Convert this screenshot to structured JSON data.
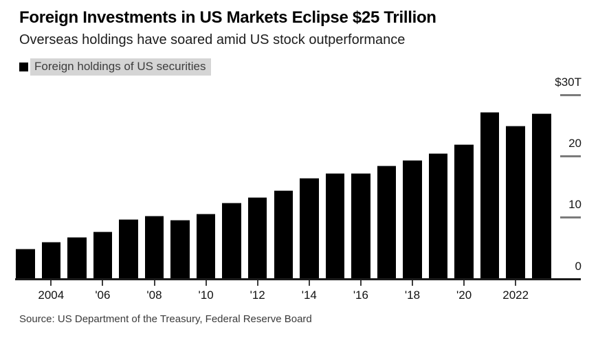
{
  "header": {
    "title": "Foreign Investments in US Markets Eclipse $25 Trillion",
    "subtitle": "Overseas holdings have soared amid US stock outperformance"
  },
  "legend": {
    "label": "Foreign holdings of US securities",
    "swatch_color": "#000000",
    "highlight_color": "#d5d5d5"
  },
  "chart_data": {
    "type": "bar",
    "title": "Foreign Investments in US Markets Eclipse $25 Trillion",
    "subtitle": "Overseas holdings have soared amid US stock outperformance",
    "series_name": "Foreign holdings of US securities",
    "unit": "trillions of US dollars",
    "categories": [
      2003,
      2004,
      2005,
      2006,
      2007,
      2008,
      2009,
      2010,
      2011,
      2012,
      2013,
      2014,
      2015,
      2016,
      2017,
      2018,
      2019,
      2020,
      2021,
      2022,
      2023
    ],
    "values": [
      4.9,
      6.0,
      6.8,
      7.7,
      9.7,
      10.3,
      9.6,
      10.6,
      12.4,
      13.3,
      14.4,
      16.5,
      17.3,
      17.3,
      18.5,
      19.4,
      20.5,
      22.0,
      27.2,
      25.0,
      27.0
    ],
    "bar_color": "#000000",
    "ylim": [
      0,
      30
    ],
    "grid": "off",
    "legend_position": "top-left",
    "y_axis_side": "right",
    "y_ticks": [
      {
        "value": 30,
        "label": "$30T"
      },
      {
        "value": 20,
        "label": "20"
      },
      {
        "value": 10,
        "label": "10"
      },
      {
        "value": 0,
        "label": "0"
      }
    ],
    "x_ticks": [
      {
        "year": 2004,
        "label": "2004"
      },
      {
        "year": 2006,
        "label": "'06"
      },
      {
        "year": 2008,
        "label": "'08"
      },
      {
        "year": 2010,
        "label": "'10"
      },
      {
        "year": 2012,
        "label": "'12"
      },
      {
        "year": 2014,
        "label": "'14"
      },
      {
        "year": 2016,
        "label": "'16"
      },
      {
        "year": 2018,
        "label": "'18"
      },
      {
        "year": 2020,
        "label": "'20"
      },
      {
        "year": 2022,
        "label": "2022"
      }
    ]
  },
  "footer": {
    "source": "Source: US Department of the Treasury, Federal Reserve Board"
  }
}
